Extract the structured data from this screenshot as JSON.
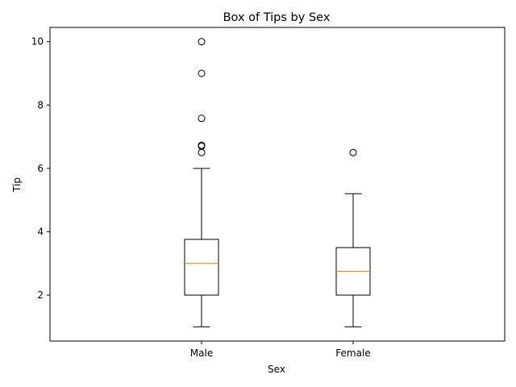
{
  "chart_data": {
    "type": "box",
    "title": "Box of Tips by Sex",
    "xlabel": "Sex",
    "ylabel": "Tip",
    "ylim": [
      0.55,
      10.45
    ],
    "yticks": [
      2,
      4,
      6,
      8,
      10
    ],
    "categories": [
      "Male",
      "Female"
    ],
    "boxes": [
      {
        "name": "Male",
        "whisker_low": 1.0,
        "q1": 2.0,
        "median": 3.0,
        "q3": 3.76,
        "whisker_high": 6.0,
        "outliers": [
          6.5,
          6.7,
          6.73,
          7.58,
          9.0,
          10.0
        ]
      },
      {
        "name": "Female",
        "whisker_low": 1.0,
        "q1": 2.0,
        "median": 2.75,
        "q3": 3.5,
        "whisker_high": 5.2,
        "outliers": [
          6.5
        ]
      }
    ],
    "median_color": "#ff7f0e",
    "box_color": "#000000",
    "grid": false
  }
}
